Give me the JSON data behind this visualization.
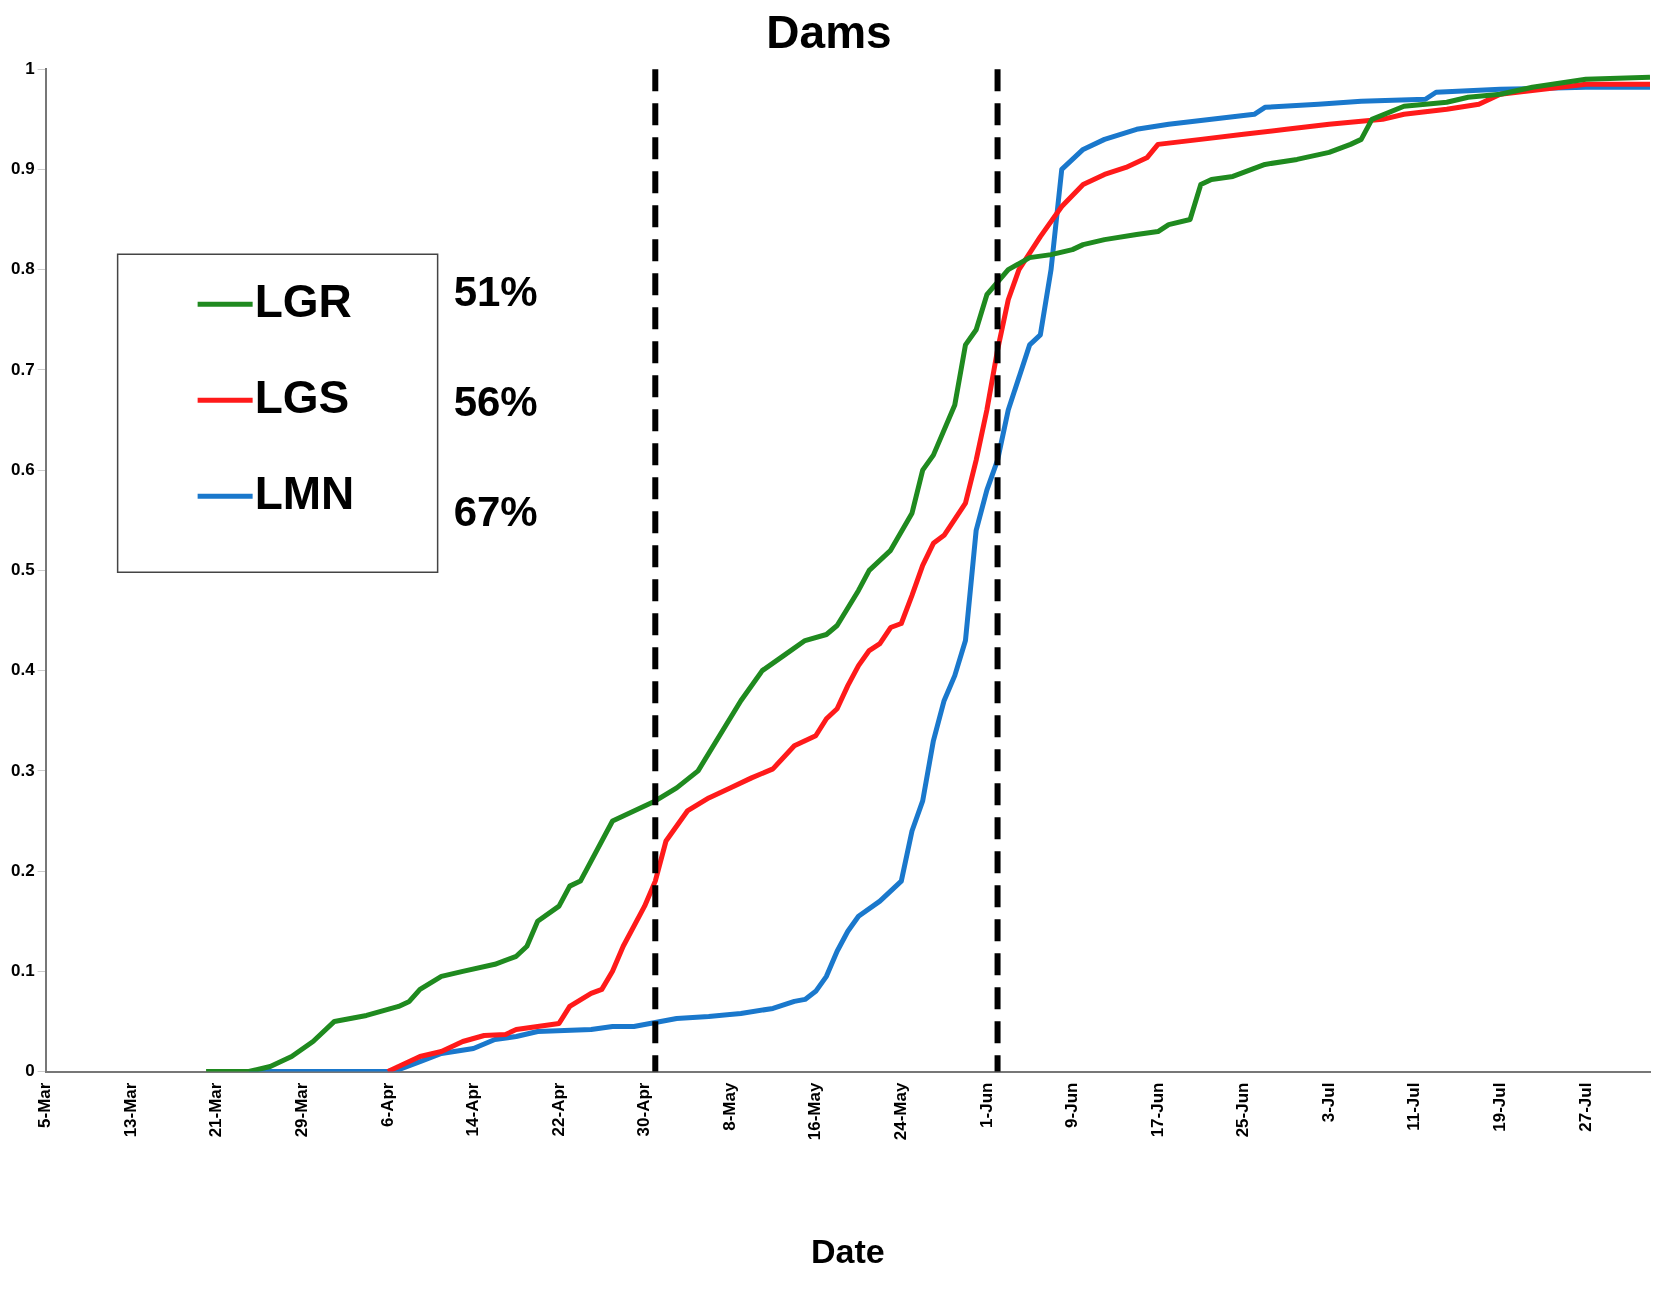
{
  "chart_data": {
    "type": "line",
    "title": "Dams",
    "xlabel": "Date",
    "xlim": [
      "--03-05",
      "--08-02"
    ],
    "xticks": [
      {
        "value": "--03-05",
        "label": "5-Mar"
      },
      {
        "value": "--03-13",
        "label": "13-Mar"
      },
      {
        "value": "--03-21",
        "label": "21-Mar"
      },
      {
        "value": "--03-29",
        "label": "29-Mar"
      },
      {
        "value": "--04-06",
        "label": "6-Apr"
      },
      {
        "value": "--04-14",
        "label": "14-Apr"
      },
      {
        "value": "--04-22",
        "label": "22-Apr"
      },
      {
        "value": "--04-30",
        "label": "30-Apr"
      },
      {
        "value": "--05-08",
        "label": "8-May"
      },
      {
        "value": "--05-16",
        "label": "16-May"
      },
      {
        "value": "--05-24",
        "label": "24-May"
      },
      {
        "value": "--06-01",
        "label": "1-Jun"
      },
      {
        "value": "--06-09",
        "label": "9-Jun"
      },
      {
        "value": "--06-17",
        "label": "17-Jun"
      },
      {
        "value": "--06-25",
        "label": "25-Jun"
      },
      {
        "value": "--07-03",
        "label": "3-Jul"
      },
      {
        "value": "--07-11",
        "label": "11-Jul"
      },
      {
        "value": "--07-19",
        "label": "19-Jul"
      },
      {
        "value": "--07-27",
        "label": "27-Jul"
      }
    ],
    "ylim": [
      0,
      1
    ],
    "yticks": [
      0,
      0.1,
      0.2,
      0.3,
      0.4,
      0.5,
      0.6,
      0.7,
      0.8,
      0.9,
      1
    ],
    "legend": "top left",
    "marker": "none",
    "line_style": "solid",
    "ref_lines": [
      {
        "axis": "x",
        "value": "--05-01",
        "color": "#000000",
        "line_style": "dashed"
      },
      {
        "axis": "x",
        "value": "--06-02",
        "color": "#000000",
        "line_style": "dashed"
      }
    ],
    "annotations": [
      "51%",
      "56%",
      "67%"
    ],
    "series": [
      {
        "name": "LGR",
        "color": "#1f8a1f",
        "x": [
          "--03-20",
          "--03-24",
          "--03-26",
          "--03-28",
          "--03-30",
          "--04-01",
          "--04-04",
          "--04-06",
          "--04-07",
          "--04-08",
          "--04-09",
          "--04-11",
          "--04-13",
          "--04-16",
          "--04-18",
          "--04-19",
          "--04-20",
          "--04-22",
          "--04-23",
          "--04-24",
          "--04-27",
          "--05-01",
          "--05-03",
          "--05-05",
          "--05-09",
          "--05-11",
          "--05-13",
          "--05-15",
          "--05-17",
          "--05-18",
          "--05-20",
          "--05-21",
          "--05-23",
          "--05-25",
          "--05-26",
          "--05-27",
          "--05-29",
          "--05-30",
          "--05-31",
          "--06-01",
          "--06-03",
          "--06-05",
          "--06-07",
          "--06-09",
          "--06-10",
          "--06-12",
          "--06-15",
          "--06-17",
          "--06-18",
          "--06-20",
          "--06-21",
          "--06-22",
          "--06-24",
          "--06-27",
          "--06-30",
          "--07-03",
          "--07-05",
          "--07-06",
          "--07-07",
          "--07-10",
          "--07-14",
          "--07-16",
          "--07-19",
          "--07-22",
          "--07-27",
          "--08-02"
        ],
        "values": [
          0,
          0,
          0.005,
          0.015,
          0.03,
          0.05,
          0.056,
          0.062,
          0.065,
          0.07,
          0.082,
          0.095,
          0.1,
          0.107,
          0.115,
          0.125,
          0.15,
          0.165,
          0.185,
          0.19,
          0.25,
          0.27,
          0.283,
          0.3,
          0.37,
          0.4,
          0.415,
          0.43,
          0.436,
          0.445,
          0.48,
          0.5,
          0.52,
          0.557,
          0.6,
          0.615,
          0.665,
          0.725,
          0.74,
          0.775,
          0.8,
          0.812,
          0.815,
          0.82,
          0.825,
          0.83,
          0.835,
          0.838,
          0.845,
          0.85,
          0.885,
          0.89,
          0.893,
          0.905,
          0.91,
          0.917,
          0.925,
          0.93,
          0.95,
          0.963,
          0.967,
          0.972,
          0.975,
          0.982,
          0.99,
          0.992
        ]
      },
      {
        "name": "LGS",
        "color": "#ff1a1a",
        "x": [
          "--04-06",
          "--04-07",
          "--04-09",
          "--04-11",
          "--04-13",
          "--04-15",
          "--04-17",
          "--04-18",
          "--04-20",
          "--04-22",
          "--04-23",
          "--04-25",
          "--04-26",
          "--04-27",
          "--04-28",
          "--04-30",
          "--05-01",
          "--05-02",
          "--05-04",
          "--05-06",
          "--05-08",
          "--05-10",
          "--05-12",
          "--05-14",
          "--05-16",
          "--05-17",
          "--05-18",
          "--05-19",
          "--05-20",
          "--05-21",
          "--05-22",
          "--05-23",
          "--05-24",
          "--05-25",
          "--05-26",
          "--05-27",
          "--05-28",
          "--05-30",
          "--05-31",
          "--06-01",
          "--06-02",
          "--06-03",
          "--06-04",
          "--06-06",
          "--06-08",
          "--06-10",
          "--06-12",
          "--06-14",
          "--06-16",
          "--06-17",
          "--06-21",
          "--06-25",
          "--06-29",
          "--07-03",
          "--07-08",
          "--07-10",
          "--07-14",
          "--07-17",
          "--07-19",
          "--07-23",
          "--07-27",
          "--08-02"
        ],
        "values": [
          0,
          0.005,
          0.015,
          0.02,
          0.03,
          0.036,
          0.037,
          0.042,
          0.045,
          0.048,
          0.065,
          0.078,
          0.082,
          0.1,
          0.125,
          0.165,
          0.19,
          0.23,
          0.26,
          0.273,
          0.283,
          0.293,
          0.302,
          0.325,
          0.335,
          0.352,
          0.362,
          0.385,
          0.405,
          0.42,
          0.427,
          0.443,
          0.447,
          0.475,
          0.505,
          0.527,
          0.535,
          0.567,
          0.61,
          0.66,
          0.72,
          0.77,
          0.8,
          0.833,
          0.863,
          0.885,
          0.895,
          0.902,
          0.912,
          0.925,
          0.93,
          0.935,
          0.94,
          0.945,
          0.95,
          0.955,
          0.96,
          0.965,
          0.975,
          0.98,
          0.985,
          0.985
        ]
      },
      {
        "name": "LMN",
        "color": "#1a78cc",
        "x": [
          "--03-24",
          "--04-06",
          "--04-07",
          "--04-09",
          "--04-11",
          "--04-14",
          "--04-16",
          "--04-18",
          "--04-20",
          "--04-25",
          "--04-27",
          "--04-29",
          "--05-01",
          "--05-03",
          "--05-06",
          "--05-09",
          "--05-12",
          "--05-14",
          "--05-15",
          "--05-16",
          "--05-17",
          "--05-18",
          "--05-19",
          "--05-20",
          "--05-22",
          "--05-24",
          "--05-25",
          "--05-26",
          "--05-27",
          "--05-28",
          "--05-29",
          "--05-30",
          "--05-31",
          "--06-01",
          "--06-02",
          "--06-03",
          "--06-05",
          "--06-06",
          "--06-07",
          "--06-08",
          "--06-10",
          "--06-12",
          "--06-15",
          "--06-18",
          "--06-22",
          "--06-26",
          "--06-27",
          "--07-02",
          "--07-06",
          "--07-12",
          "--07-13",
          "--07-19",
          "--07-27",
          "--08-02"
        ],
        "values": [
          0,
          0,
          0.002,
          0.01,
          0.018,
          0.023,
          0.032,
          0.035,
          0.04,
          0.042,
          0.045,
          0.045,
          0.049,
          0.053,
          0.055,
          0.058,
          0.063,
          0.07,
          0.072,
          0.08,
          0.095,
          0.12,
          0.14,
          0.155,
          0.17,
          0.19,
          0.24,
          0.27,
          0.33,
          0.37,
          0.395,
          0.43,
          0.54,
          0.58,
          0.61,
          0.66,
          0.725,
          0.735,
          0.8,
          0.9,
          0.92,
          0.93,
          0.94,
          0.945,
          0.95,
          0.955,
          0.962,
          0.965,
          0.968,
          0.97,
          0.977,
          0.98,
          0.982,
          0.982
        ]
      }
    ]
  }
}
